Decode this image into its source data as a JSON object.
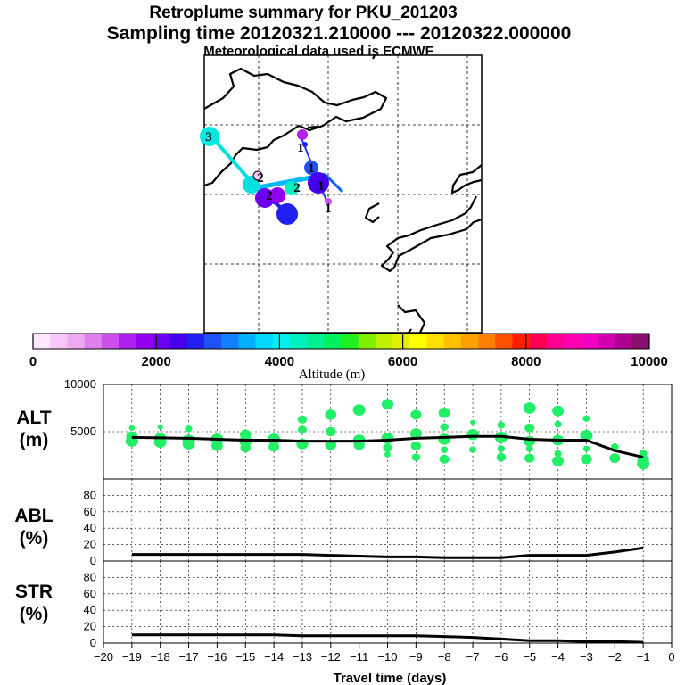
{
  "header": {
    "title1": "Retroplume summary for PKU_201203",
    "title2": "Sampling time   20120321.210000 --- 20120322.000000",
    "title3": "Meteorological data used is ECMWF"
  },
  "colorbar": {
    "label": "Altitude (m)",
    "ticks": [
      "0",
      "2000",
      "4000",
      "6000",
      "8000",
      "10000"
    ],
    "colors": [
      "#ffe6ff",
      "#f7c8f7",
      "#eeaaf0",
      "#e080ee",
      "#cc50ee",
      "#b020ee",
      "#9000ee",
      "#6a00ee",
      "#4400ee",
      "#2020f0",
      "#2050f8",
      "#1080ff",
      "#00b0ff",
      "#00d8ff",
      "#00f0f0",
      "#00f0c0",
      "#00f090",
      "#00f060",
      "#20f020",
      "#80f000",
      "#c0f000",
      "#e0f000",
      "#ffff00",
      "#ffe000",
      "#ffc000",
      "#ffa000",
      "#ff8000",
      "#ff5000",
      "#ff2000",
      "#ff0050",
      "#ff0090",
      "#ff00b0",
      "#f000c0",
      "#d000b0",
      "#b00090",
      "#8a1070"
    ]
  },
  "map": {
    "markers": [
      {
        "text": "3"
      },
      {
        "text": "2"
      },
      {
        "text": "2"
      },
      {
        "text": "1"
      },
      {
        "text": "1"
      },
      {
        "text": "1"
      },
      {
        "text": "1"
      },
      {
        "text": "2"
      }
    ]
  },
  "panels": {
    "alt_label": "ALT",
    "alt_unit": "(m)",
    "abl_label": "ABL",
    "abl_unit": "(%)",
    "str_label": "STR",
    "str_unit": "(%)"
  },
  "chart_data": [
    {
      "type": "line",
      "title": "ALT",
      "xlabel": "Travel time (days)",
      "ylabel": "(m)",
      "x": [
        -19,
        -18,
        -17,
        -16,
        -15,
        -14,
        -13,
        -12,
        -11,
        -10,
        -9,
        -8,
        -7,
        -6,
        -5,
        -4,
        -3,
        -2,
        -1
      ],
      "values": [
        4400,
        4350,
        4300,
        4200,
        4100,
        4100,
        4000,
        4000,
        4000,
        4100,
        4300,
        4400,
        4500,
        4500,
        4200,
        4100,
        4100,
        3000,
        2300
      ],
      "xlim": [
        -20,
        0
      ],
      "ylim": [
        0,
        10000
      ],
      "ytick_labels": [
        "10000",
        "5000"
      ],
      "scatter_color": "#22ee66",
      "scatter": [
        {
          "x": -19,
          "y": 4500
        },
        {
          "x": -19,
          "y": 5400
        },
        {
          "x": -19,
          "y": 4000
        },
        {
          "x": -18,
          "y": 4300
        },
        {
          "x": -18,
          "y": 5500
        },
        {
          "x": -18,
          "y": 3900
        },
        {
          "x": -17,
          "y": 4100
        },
        {
          "x": -17,
          "y": 5300
        },
        {
          "x": -17,
          "y": 3700
        },
        {
          "x": -16,
          "y": 4200
        },
        {
          "x": -16,
          "y": 3500
        },
        {
          "x": -15,
          "y": 4000
        },
        {
          "x": -15,
          "y": 3300
        },
        {
          "x": -15,
          "y": 4700
        },
        {
          "x": -14,
          "y": 4200
        },
        {
          "x": -14,
          "y": 3400
        },
        {
          "x": -13,
          "y": 3700
        },
        {
          "x": -13,
          "y": 6300
        },
        {
          "x": -13,
          "y": 5200
        },
        {
          "x": -12,
          "y": 3600
        },
        {
          "x": -12,
          "y": 6800
        },
        {
          "x": -12,
          "y": 5000
        },
        {
          "x": -11,
          "y": 3600
        },
        {
          "x": -11,
          "y": 7300
        },
        {
          "x": -11,
          "y": 4100
        },
        {
          "x": -10,
          "y": 4300
        },
        {
          "x": -10,
          "y": 7900
        },
        {
          "x": -10,
          "y": 2600
        },
        {
          "x": -10,
          "y": 3300
        },
        {
          "x": -9,
          "y": 4800
        },
        {
          "x": -9,
          "y": 6800
        },
        {
          "x": -9,
          "y": 3500
        },
        {
          "x": -9,
          "y": 2300
        },
        {
          "x": -8,
          "y": 4200
        },
        {
          "x": -8,
          "y": 7000
        },
        {
          "x": -8,
          "y": 5500
        },
        {
          "x": -8,
          "y": 2100
        },
        {
          "x": -8,
          "y": 3100
        },
        {
          "x": -7,
          "y": 4700
        },
        {
          "x": -7,
          "y": 6000
        },
        {
          "x": -7,
          "y": 3100
        },
        {
          "x": -6,
          "y": 5700
        },
        {
          "x": -6,
          "y": 4400
        },
        {
          "x": -6,
          "y": 3200
        },
        {
          "x": -6,
          "y": 2300
        },
        {
          "x": -5,
          "y": 7500
        },
        {
          "x": -5,
          "y": 5400
        },
        {
          "x": -5,
          "y": 4000
        },
        {
          "x": -5,
          "y": 3200
        },
        {
          "x": -5,
          "y": 2200
        },
        {
          "x": -4,
          "y": 7200
        },
        {
          "x": -4,
          "y": 5800
        },
        {
          "x": -4,
          "y": 4100
        },
        {
          "x": -4,
          "y": 2700
        },
        {
          "x": -4,
          "y": 1900
        },
        {
          "x": -3,
          "y": 6400
        },
        {
          "x": -3,
          "y": 4600
        },
        {
          "x": -3,
          "y": 3200
        },
        {
          "x": -3,
          "y": 2100
        },
        {
          "x": -2,
          "y": 3400
        },
        {
          "x": -2,
          "y": 2200
        },
        {
          "x": -1,
          "y": 2700
        },
        {
          "x": -1,
          "y": 2000
        },
        {
          "x": -1,
          "y": 1600
        }
      ]
    },
    {
      "type": "line",
      "title": "ABL",
      "xlabel": "Travel time (days)",
      "ylabel": "(%)",
      "x": [
        -19,
        -18,
        -17,
        -16,
        -15,
        -14,
        -13,
        -12,
        -11,
        -10,
        -9,
        -8,
        -7,
        -6,
        -5,
        -4,
        -3,
        -2,
        -1
      ],
      "values": [
        8,
        8,
        8,
        8,
        8,
        8,
        8,
        7,
        6,
        5,
        5,
        4,
        4,
        4,
        7,
        7,
        7,
        11,
        16
      ],
      "xlim": [
        -20,
        0
      ],
      "ylim": [
        0,
        100
      ],
      "ytick_labels": [
        "80",
        "60",
        "40",
        "20",
        "0"
      ]
    },
    {
      "type": "line",
      "title": "STR",
      "xlabel": "Travel time (days)",
      "ylabel": "(%)",
      "x": [
        -19,
        -18,
        -17,
        -16,
        -15,
        -14,
        -13,
        -12,
        -11,
        -10,
        -9,
        -8,
        -7,
        -6,
        -5,
        -4,
        -3,
        -2,
        -1
      ],
      "values": [
        10,
        10,
        10,
        10,
        10,
        10,
        9,
        9,
        9,
        9,
        9,
        8,
        7,
        5,
        3,
        3,
        2,
        2,
        1
      ],
      "xlim": [
        -20,
        0
      ],
      "ylim": [
        0,
        100
      ],
      "ytick_labels": [
        "80",
        "60",
        "40",
        "20",
        "0"
      ],
      "xtick_labels": [
        "−20",
        "−19",
        "−18",
        "−17",
        "−16",
        "−15",
        "−14",
        "−13",
        "−12",
        "−11",
        "−10",
        "−9",
        "−8",
        "−7",
        "−6",
        "−5",
        "−4",
        "−3",
        "−2",
        "−1",
        "0"
      ]
    }
  ]
}
